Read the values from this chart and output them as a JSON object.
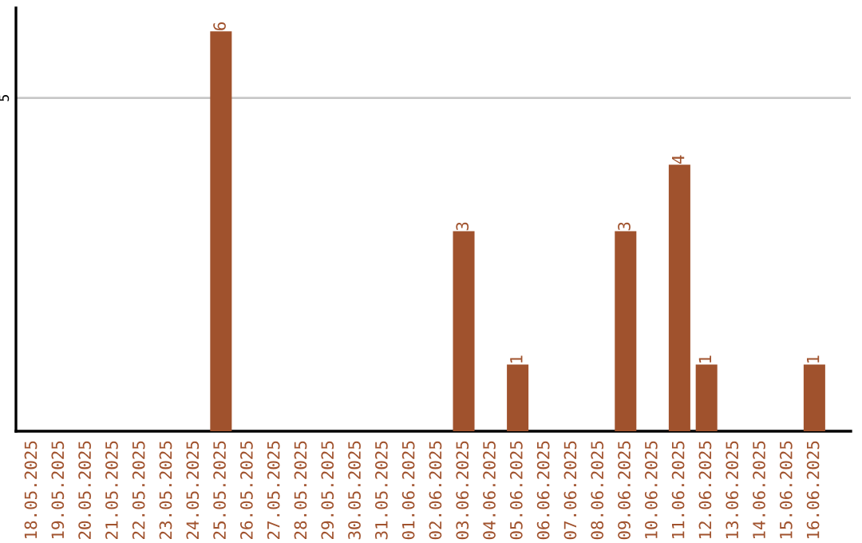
{
  "chart_data": {
    "type": "bar",
    "categories": [
      "18.05.2025",
      "19.05.2025",
      "20.05.2025",
      "21.05.2025",
      "22.05.2025",
      "23.05.2025",
      "24.05.2025",
      "25.05.2025",
      "26.05.2025",
      "27.05.2025",
      "28.05.2025",
      "29.05.2025",
      "30.05.2025",
      "31.05.2025",
      "01.06.2025",
      "02.06.2025",
      "03.06.2025",
      "04.06.2025",
      "05.06.2025",
      "06.06.2025",
      "07.06.2025",
      "08.06.2025",
      "09.06.2025",
      "10.06.2025",
      "11.06.2025",
      "12.06.2025",
      "13.06.2025",
      "14.06.2025",
      "15.06.2025",
      "16.06.2025"
    ],
    "values": [
      0,
      0,
      0,
      0,
      0,
      0,
      0,
      6,
      0,
      0,
      0,
      0,
      0,
      0,
      0,
      0,
      3,
      0,
      1,
      0,
      0,
      0,
      3,
      0,
      4,
      1,
      0,
      0,
      0,
      1
    ],
    "value_labels": [
      null,
      null,
      null,
      null,
      null,
      null,
      null,
      "6",
      null,
      null,
      null,
      null,
      null,
      null,
      null,
      null,
      "3",
      null,
      "1",
      null,
      null,
      null,
      "3",
      null,
      "4",
      "1",
      null,
      null,
      null,
      "1"
    ],
    "color": "#a0522d",
    "ylim": [
      0,
      6.35
    ],
    "yticks": [
      5
    ],
    "grid": "y",
    "legend": false
  }
}
